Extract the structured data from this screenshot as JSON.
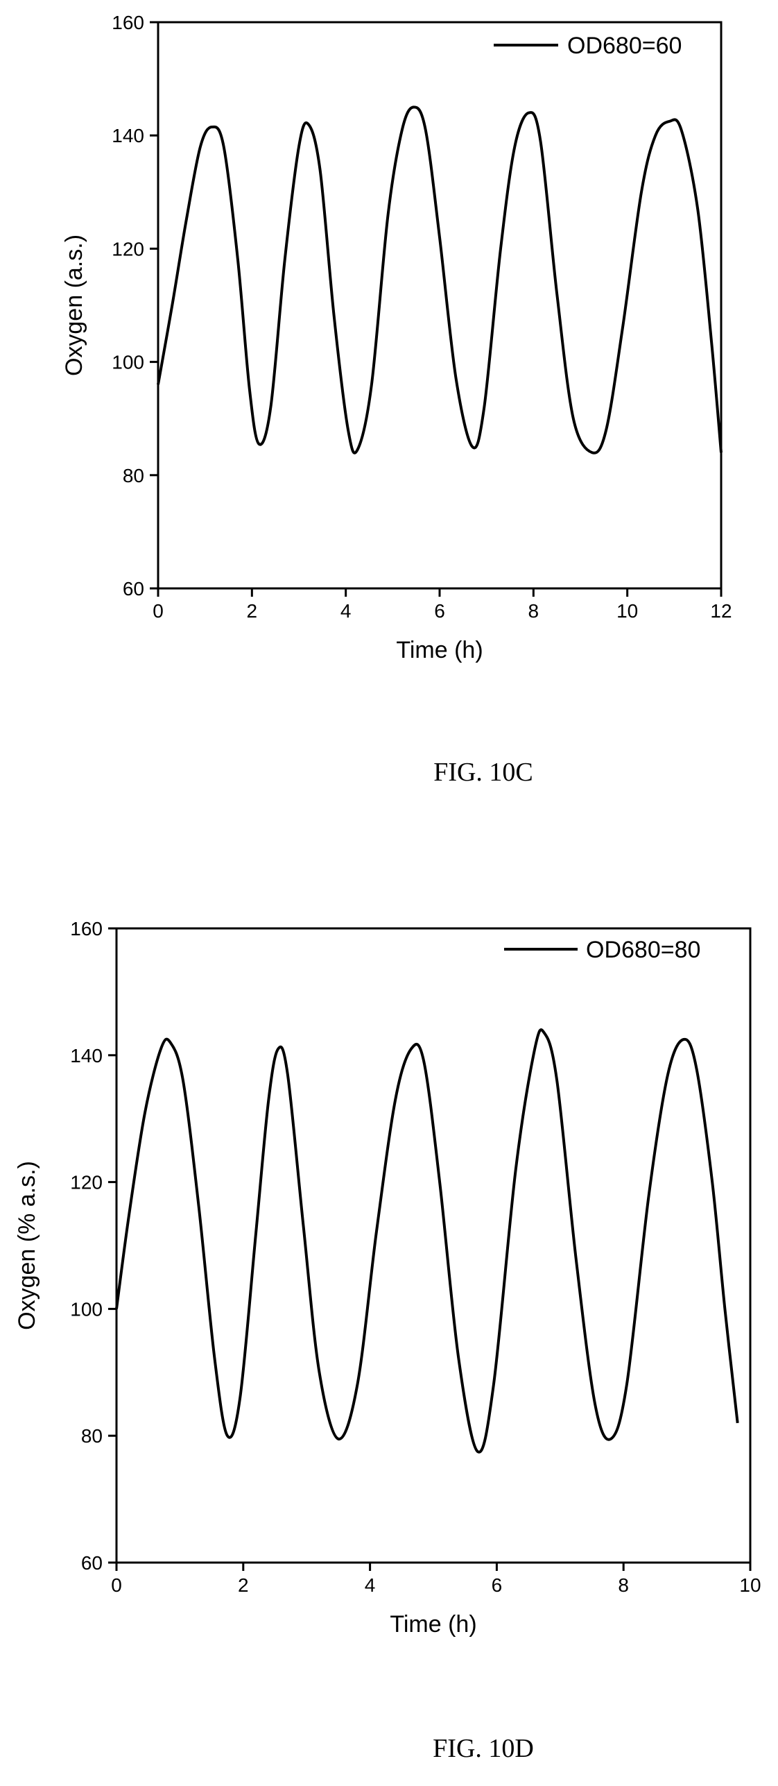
{
  "chart_data": [
    {
      "type": "line",
      "xlabel": "Time (h)",
      "ylabel": "Oxygen (a.s.)",
      "xlim": [
        0,
        12
      ],
      "ylim": [
        60,
        160
      ],
      "x_ticks": [
        "0",
        "2",
        "4",
        "6",
        "8",
        "10",
        "12"
      ],
      "y_ticks": [
        "60",
        "80",
        "100",
        "120",
        "140",
        "160"
      ],
      "legend_position": "top-right",
      "grid": false,
      "caption": "FIG. 10C",
      "series": [
        {
          "name": "OD680=60",
          "x": [
            0,
            0.3,
            0.6,
            0.9,
            1.15,
            1.4,
            1.7,
            1.95,
            2.15,
            2.4,
            2.7,
            3.0,
            3.2,
            3.45,
            3.75,
            4.05,
            4.25,
            4.55,
            4.9,
            5.2,
            5.45,
            5.7,
            6.0,
            6.35,
            6.7,
            6.95,
            7.3,
            7.6,
            7.9,
            8.15,
            8.5,
            8.85,
            9.25,
            9.55,
            9.9,
            10.3,
            10.6,
            10.9,
            11.15,
            11.5,
            11.8,
            12.0
          ],
          "y": [
            96,
            110,
            125,
            138,
            141.5,
            138,
            118,
            95,
            85.5,
            92,
            118,
            138,
            142,
            134,
            108,
            88,
            84.5,
            96,
            126,
            141,
            145,
            141,
            122,
            97,
            85,
            92,
            120,
            138,
            144,
            139,
            112,
            90,
            84,
            88,
            106,
            130,
            140,
            142.5,
            141,
            127,
            103,
            84
          ]
        }
      ]
    },
    {
      "type": "line",
      "xlabel": "Time (h)",
      "ylabel": "Oxygen (% a.s.)",
      "xlim": [
        0,
        10
      ],
      "ylim": [
        60,
        160
      ],
      "x_ticks": [
        "0",
        "2",
        "4",
        "6",
        "8",
        "10"
      ],
      "y_ticks": [
        "60",
        "80",
        "100",
        "120",
        "140",
        "160"
      ],
      "legend_position": "top-right",
      "grid": false,
      "caption": "FIG. 10D",
      "series": [
        {
          "name": "OD680=80",
          "x": [
            0,
            0.2,
            0.45,
            0.7,
            0.85,
            1.05,
            1.3,
            1.55,
            1.75,
            1.95,
            2.2,
            2.4,
            2.55,
            2.7,
            2.95,
            3.2,
            3.5,
            3.8,
            4.1,
            4.4,
            4.65,
            4.85,
            5.1,
            5.4,
            5.7,
            5.95,
            6.3,
            6.6,
            6.75,
            6.95,
            7.25,
            7.55,
            7.8,
            8.05,
            8.4,
            8.7,
            8.95,
            9.15,
            9.4,
            9.6,
            9.8
          ],
          "y": [
            100,
            115,
            131,
            141,
            142,
            136,
            116,
            92,
            80,
            86,
            112,
            133,
            141,
            137,
            113,
            90,
            79.5,
            88,
            112,
            133,
            141,
            139,
            120,
            92,
            77.5,
            88,
            122,
            141,
            143.5,
            136,
            108,
            85,
            79.5,
            88,
            118,
            137,
            142.5,
            138,
            120,
            100,
            82
          ]
        }
      ]
    }
  ]
}
